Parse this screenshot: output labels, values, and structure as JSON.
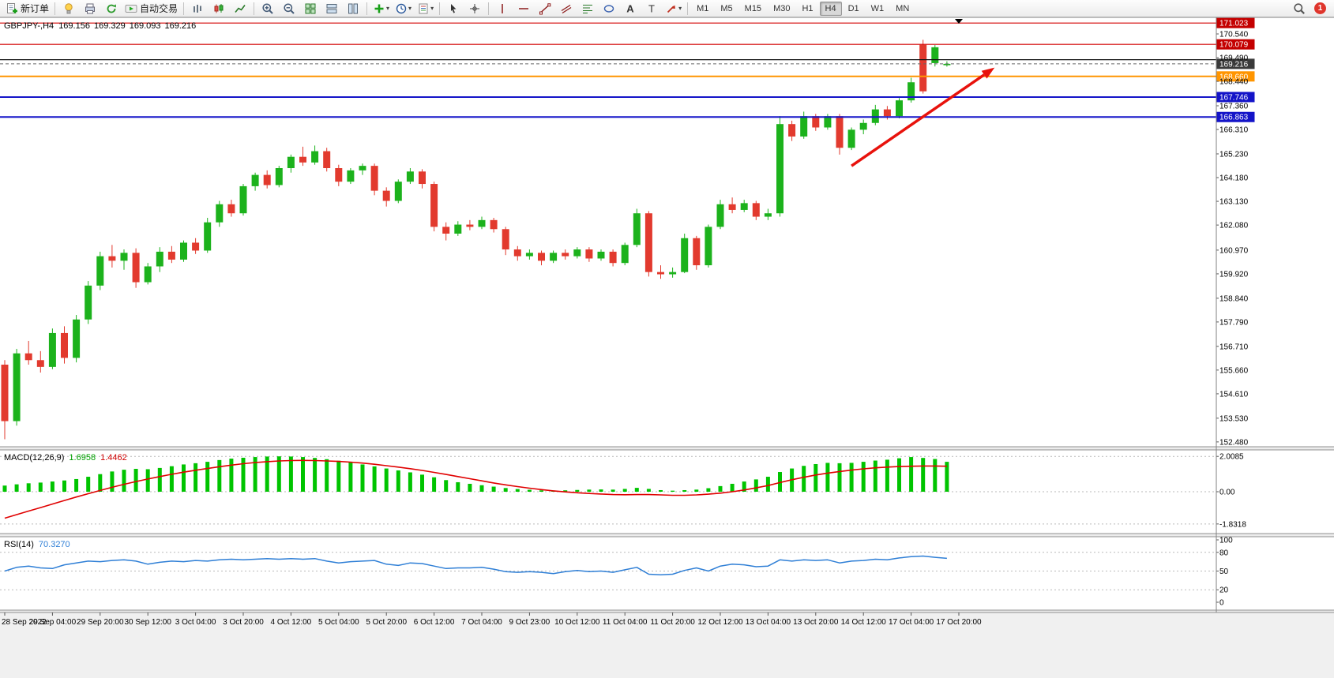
{
  "toolbar": {
    "new_order_label": "新订单",
    "autotrading_label": "自动交易",
    "timeframes": [
      "M1",
      "M5",
      "M15",
      "M30",
      "H1",
      "H4",
      "D1",
      "W1",
      "MN"
    ],
    "active_timeframe": "H4",
    "notification_count": "1",
    "groups": [
      {
        "items": [
          {
            "icon": "new-order",
            "name": "new-order-button",
            "label": "新订单"
          }
        ]
      },
      {
        "items": [
          {
            "icon": "ea-lamp",
            "name": "experts-button"
          },
          {
            "icon": "printer",
            "name": "print-button"
          },
          {
            "icon": "refresh",
            "name": "refresh-button"
          },
          {
            "icon": "autotrading",
            "name": "autotrading-button",
            "label": "自动交易"
          }
        ]
      },
      {
        "items": [
          {
            "icon": "bar-chart",
            "name": "bar-chart-button"
          },
          {
            "icon": "candle-chart",
            "name": "candlestick-chart-button"
          },
          {
            "icon": "line-chart",
            "name": "line-chart-button"
          }
        ]
      },
      {
        "items": [
          {
            "icon": "zoom-in",
            "name": "zoom-in-button"
          },
          {
            "icon": "zoom-out",
            "name": "zoom-out-button"
          },
          {
            "icon": "tile-windows",
            "name": "tile-windows-button"
          },
          {
            "icon": "arrange-v",
            "name": "cascade-windows-button"
          },
          {
            "icon": "arrange-h",
            "name": "tile-horizontal-button"
          }
        ]
      },
      {
        "items": [
          {
            "icon": "indicators",
            "name": "indicators-button",
            "dropdown": true
          },
          {
            "icon": "periods",
            "name": "periods-button",
            "dropdown": true
          },
          {
            "icon": "templates",
            "name": "templates-button",
            "dropdown": true
          }
        ]
      },
      {
        "items": [
          {
            "icon": "cursor",
            "name": "cursor-button"
          },
          {
            "icon": "crosshair",
            "name": "crosshair-button"
          }
        ]
      },
      {
        "items": [
          {
            "icon": "vline",
            "name": "vertical-line-button"
          },
          {
            "icon": "hline",
            "name": "horizontal-line-button"
          },
          {
            "icon": "trendline",
            "name": "trendline-button"
          },
          {
            "icon": "channel",
            "name": "channel-button"
          },
          {
            "icon": "fibonacci",
            "name": "fibonacci-button"
          },
          {
            "icon": "shapes",
            "name": "shapes-button"
          },
          {
            "icon": "text",
            "name": "text-button"
          },
          {
            "icon": "label",
            "name": "label-button"
          },
          {
            "icon": "arrows",
            "name": "arrows-button",
            "dropdown": true
          }
        ]
      }
    ]
  },
  "chart": {
    "title": "GBPJPY-,H4",
    "ohlc": {
      "open": "169.156",
      "high": "169.329",
      "low": "169.093",
      "close": "169.216"
    }
  },
  "macd": {
    "title": "MACD(12,26,9)",
    "value_main": "1.6958",
    "value_signal": "1.4462",
    "scale": [
      "2.0085",
      "0.00",
      "-1.8318"
    ]
  },
  "rsi": {
    "title": "RSI(14)",
    "value": "70.3270",
    "scale": [
      "100",
      "80",
      "50",
      "20",
      "0"
    ]
  },
  "chart_data": {
    "type": "candlestick",
    "symbol": "GBPJPY-",
    "timeframe": "H4",
    "ohlc_current": {
      "open": 169.156,
      "high": 169.329,
      "low": 169.093,
      "close": 169.216
    },
    "bull_color": "#1cb21c",
    "bear_color": "#e23a2e",
    "price_axis_range": [
      152.48,
      171.023
    ],
    "price_axis_labels": [
      "170.540",
      "169.490",
      "168.440",
      "167.360",
      "166.310",
      "165.230",
      "164.180",
      "163.130",
      "162.080",
      "160.970",
      "159.920",
      "158.840",
      "157.790",
      "156.710",
      "155.660",
      "154.610",
      "153.530",
      "152.480"
    ],
    "time_axis_labels": [
      "28 Sep 2022",
      "29 Sep 04:00",
      "29 Sep 20:00",
      "30 Sep 12:00",
      "3 Oct 04:00",
      "3 Oct 20:00",
      "4 Oct 12:00",
      "5 Oct 04:00",
      "5 Oct 20:00",
      "6 Oct 12:00",
      "7 Oct 04:00",
      "9 Oct 23:00",
      "10 Oct 12:00",
      "11 Oct 04:00",
      "11 Oct 20:00",
      "12 Oct 12:00",
      "13 Oct 04:00",
      "13 Oct 20:00",
      "14 Oct 12:00",
      "17 Oct 04:00",
      "17 Oct 20:00"
    ],
    "levels": [
      {
        "name": "resistance-line-1",
        "label": "171.023",
        "price": 171.023,
        "color": "#d40000",
        "width": 1.2,
        "badge": "#c40000",
        "style": "solid"
      },
      {
        "name": "resistance-line-2",
        "label": "170.079",
        "price": 170.079,
        "color": "#d40000",
        "width": 1.2,
        "badge": "#c40000",
        "style": "solid"
      },
      {
        "name": "black-horizontal-line",
        "label": "",
        "price": 169.4,
        "color": "#111111",
        "width": 1.2,
        "badge": "",
        "style": "solid"
      },
      {
        "name": "current-price-line",
        "label": "169.216",
        "price": 169.216,
        "color": "#666666",
        "width": 1,
        "badge": "#3a3a3a",
        "style": "dash"
      },
      {
        "name": "support-line-orange",
        "label": "168.660",
        "price": 168.66,
        "color": "#ff9500",
        "width": 2,
        "badge": "#ff9500",
        "style": "solid"
      },
      {
        "name": "support-line-blue-1",
        "label": "167.746",
        "price": 167.746,
        "color": "#1414c8",
        "width": 2,
        "badge": "#1414c8",
        "style": "solid"
      },
      {
        "name": "support-line-blue-2",
        "label": "166.863",
        "price": 166.863,
        "color": "#1414c8",
        "width": 2,
        "badge": "#1414c8",
        "style": "solid"
      }
    ],
    "candles": [
      [
        155.9,
        156.1,
        152.6,
        153.4
      ],
      [
        153.4,
        156.6,
        153.2,
        156.4
      ],
      [
        156.4,
        156.95,
        155.9,
        156.1
      ],
      [
        156.1,
        156.5,
        155.55,
        155.8
      ],
      [
        155.8,
        157.5,
        155.7,
        157.3
      ],
      [
        157.3,
        157.6,
        155.95,
        156.2
      ],
      [
        156.2,
        158.1,
        156.0,
        157.9
      ],
      [
        157.9,
        159.6,
        157.7,
        159.4
      ],
      [
        159.4,
        160.9,
        159.2,
        160.7
      ],
      [
        160.7,
        161.2,
        160.2,
        160.5
      ],
      [
        160.5,
        161.0,
        160.1,
        160.85
      ],
      [
        160.85,
        161.05,
        159.3,
        159.55
      ],
      [
        159.55,
        160.4,
        159.45,
        160.25
      ],
      [
        160.25,
        161.1,
        160.0,
        160.9
      ],
      [
        160.9,
        161.15,
        160.4,
        160.55
      ],
      [
        160.55,
        161.4,
        160.45,
        161.3
      ],
      [
        161.3,
        161.5,
        160.8,
        160.95
      ],
      [
        160.95,
        162.4,
        160.85,
        162.2
      ],
      [
        162.2,
        163.15,
        162.0,
        163.0
      ],
      [
        163.0,
        163.2,
        162.45,
        162.6
      ],
      [
        162.6,
        163.9,
        162.5,
        163.8
      ],
      [
        163.8,
        164.4,
        163.6,
        164.3
      ],
      [
        164.3,
        164.5,
        163.7,
        163.85
      ],
      [
        163.85,
        164.7,
        163.75,
        164.6
      ],
      [
        164.6,
        165.2,
        164.4,
        165.1
      ],
      [
        165.1,
        165.55,
        164.7,
        164.85
      ],
      [
        164.85,
        165.6,
        164.75,
        165.35
      ],
      [
        165.35,
        165.5,
        164.45,
        164.6
      ],
      [
        164.6,
        164.75,
        163.8,
        164.0
      ],
      [
        164.0,
        164.6,
        163.9,
        164.5
      ],
      [
        164.5,
        164.8,
        164.3,
        164.7
      ],
      [
        164.7,
        164.8,
        163.4,
        163.6
      ],
      [
        163.6,
        163.75,
        162.9,
        163.15
      ],
      [
        163.15,
        164.1,
        163.05,
        164.0
      ],
      [
        164.0,
        164.6,
        163.9,
        164.45
      ],
      [
        164.45,
        164.55,
        163.7,
        163.9
      ],
      [
        163.9,
        164.0,
        161.8,
        162.0
      ],
      [
        162.0,
        162.2,
        161.4,
        161.7
      ],
      [
        161.7,
        162.25,
        161.6,
        162.1
      ],
      [
        162.1,
        162.3,
        161.85,
        162.0
      ],
      [
        162.0,
        162.45,
        161.9,
        162.3
      ],
      [
        162.3,
        162.4,
        161.75,
        161.9
      ],
      [
        161.9,
        162.0,
        160.75,
        161.0
      ],
      [
        161.0,
        161.15,
        160.5,
        160.7
      ],
      [
        160.7,
        161.0,
        160.55,
        160.85
      ],
      [
        160.85,
        160.95,
        160.3,
        160.5
      ],
      [
        160.5,
        160.95,
        160.4,
        160.85
      ],
      [
        160.85,
        161.0,
        160.55,
        160.7
      ],
      [
        160.7,
        161.1,
        160.6,
        161.0
      ],
      [
        161.0,
        161.1,
        160.45,
        160.6
      ],
      [
        160.6,
        161.0,
        160.5,
        160.9
      ],
      [
        160.9,
        161.0,
        160.25,
        160.4
      ],
      [
        160.4,
        161.3,
        160.3,
        161.2
      ],
      [
        161.2,
        162.8,
        161.1,
        162.6
      ],
      [
        162.6,
        162.7,
        159.8,
        160.0
      ],
      [
        160.0,
        160.3,
        159.7,
        159.9
      ],
      [
        159.9,
        160.2,
        159.75,
        160.0
      ],
      [
        160.0,
        161.7,
        159.95,
        161.5
      ],
      [
        161.5,
        161.6,
        160.1,
        160.3
      ],
      [
        160.3,
        162.1,
        160.2,
        162.0
      ],
      [
        162.0,
        163.2,
        161.9,
        163.0
      ],
      [
        163.0,
        163.3,
        162.6,
        162.75
      ],
      [
        162.75,
        163.2,
        162.65,
        163.05
      ],
      [
        163.05,
        163.15,
        162.3,
        162.45
      ],
      [
        162.45,
        162.8,
        162.3,
        162.6
      ],
      [
        162.6,
        166.9,
        162.45,
        166.55
      ],
      [
        166.55,
        166.7,
        165.8,
        166.0
      ],
      [
        166.0,
        167.1,
        165.9,
        166.9
      ],
      [
        166.9,
        167.0,
        166.25,
        166.4
      ],
      [
        166.4,
        167.0,
        166.3,
        166.9
      ],
      [
        166.9,
        167.0,
        165.2,
        165.5
      ],
      [
        165.5,
        166.4,
        165.4,
        166.3
      ],
      [
        166.3,
        166.75,
        166.1,
        166.6
      ],
      [
        166.6,
        167.4,
        166.5,
        167.2
      ],
      [
        167.2,
        167.35,
        166.75,
        166.9
      ],
      [
        166.9,
        167.7,
        166.8,
        167.6
      ],
      [
        167.6,
        168.6,
        167.5,
        168.4
      ],
      [
        170.06,
        170.28,
        167.9,
        168.0
      ],
      [
        169.25,
        170.05,
        169.1,
        169.95
      ],
      [
        169.156,
        169.329,
        169.093,
        169.216
      ]
    ],
    "indicators": {
      "macd": {
        "params": "12,26,9",
        "last_main": 1.6958,
        "last_signal": 1.4462,
        "scale_max": 2.0085,
        "scale_min": -1.8318,
        "histogram": [
          0.35,
          0.42,
          0.48,
          0.52,
          0.58,
          0.64,
          0.72,
          0.85,
          1.0,
          1.15,
          1.25,
          1.3,
          1.28,
          1.35,
          1.45,
          1.55,
          1.62,
          1.7,
          1.8,
          1.88,
          1.93,
          1.97,
          2.0,
          2.01,
          2.0,
          1.97,
          1.92,
          1.85,
          1.76,
          1.66,
          1.55,
          1.44,
          1.32,
          1.21,
          1.1,
          0.97,
          0.82,
          0.66,
          0.54,
          0.45,
          0.37,
          0.29,
          0.21,
          0.15,
          0.11,
          0.08,
          0.07,
          0.08,
          0.1,
          0.12,
          0.13,
          0.12,
          0.16,
          0.22,
          0.16,
          0.09,
          0.06,
          0.09,
          0.12,
          0.2,
          0.32,
          0.45,
          0.58,
          0.7,
          0.85,
          1.12,
          1.32,
          1.47,
          1.57,
          1.64,
          1.62,
          1.64,
          1.7,
          1.77,
          1.82,
          1.9,
          1.97,
          1.92,
          1.86,
          1.7
        ],
        "signal": [
          -1.5,
          -1.3,
          -1.1,
          -0.9,
          -0.7,
          -0.5,
          -0.3,
          -0.11,
          0.07,
          0.25,
          0.42,
          0.58,
          0.72,
          0.86,
          0.99,
          1.11,
          1.22,
          1.32,
          1.42,
          1.51,
          1.59,
          1.66,
          1.71,
          1.75,
          1.77,
          1.78,
          1.77,
          1.75,
          1.72,
          1.68,
          1.63,
          1.56,
          1.48,
          1.4,
          1.31,
          1.21,
          1.1,
          0.98,
          0.86,
          0.74,
          0.62,
          0.5,
          0.39,
          0.29,
          0.2,
          0.12,
          0.05,
          -0.01,
          -0.06,
          -0.1,
          -0.13,
          -0.16,
          -0.17,
          -0.16,
          -0.16,
          -0.18,
          -0.2,
          -0.2,
          -0.18,
          -0.14,
          -0.08,
          0.0,
          0.1,
          0.22,
          0.35,
          0.52,
          0.68,
          0.82,
          0.95,
          1.06,
          1.15,
          1.23,
          1.3,
          1.36,
          1.4,
          1.43,
          1.45,
          1.46,
          1.46,
          1.45
        ]
      },
      "rsi": {
        "period": 14,
        "last": 70.327,
        "levels": [
          20,
          50,
          80
        ],
        "values": [
          50,
          56,
          58,
          55,
          54,
          60,
          63,
          66,
          65,
          67,
          68,
          66,
          61,
          64,
          66,
          65,
          67,
          66,
          68,
          69,
          68,
          69,
          70,
          69,
          70,
          69,
          70,
          66,
          63,
          65,
          66,
          67,
          61,
          59,
          63,
          62,
          58,
          54,
          55,
          55,
          56,
          53,
          49,
          48,
          49,
          48,
          46,
          49,
          51,
          49,
          50,
          48,
          52,
          56,
          45,
          44,
          45,
          51,
          55,
          50,
          58,
          61,
          60,
          57,
          58,
          68,
          66,
          68,
          67,
          68,
          63,
          66,
          67,
          69,
          68,
          71,
          73,
          74,
          72,
          70.33
        ]
      }
    },
    "annotation_arrow": {
      "from_bar": 71,
      "from_price": 164.7,
      "to_bar": 83,
      "to_price": 169.05,
      "color": "#e8120c",
      "direction": "up-right"
    }
  }
}
